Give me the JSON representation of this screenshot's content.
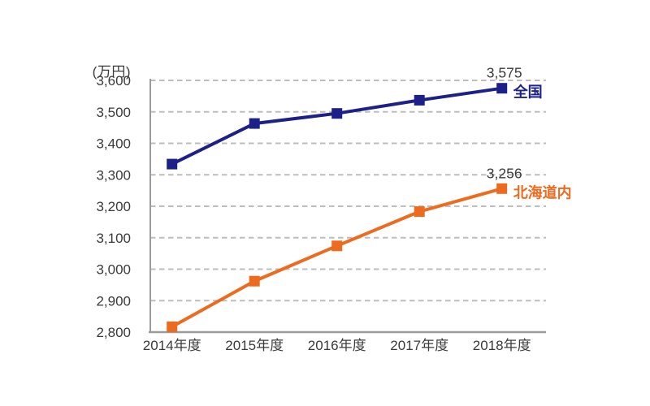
{
  "chart_data": {
    "type": "line",
    "title": "",
    "unit_label": "(万円)",
    "xlabel": "",
    "ylabel": "万円",
    "categories": [
      "2014年度",
      "2015年度",
      "2016年度",
      "2017年度",
      "2018年度"
    ],
    "series": [
      {
        "name": "全国",
        "color": "#1d2088",
        "values": [
          3334,
          3463,
          3495,
          3537,
          3575
        ],
        "end_label": "3,575"
      },
      {
        "name": "北海道内",
        "color": "#ec6b1e",
        "values": [
          2817,
          2962,
          3074,
          3183,
          3256
        ],
        "end_label": "3,256"
      }
    ],
    "ylim": [
      2800,
      3600
    ],
    "yticks": [
      {
        "value": 3600,
        "label": "3,600"
      },
      {
        "value": 3500,
        "label": "3,500"
      },
      {
        "value": 3400,
        "label": "3,400"
      },
      {
        "value": 3300,
        "label": "3,300"
      },
      {
        "value": 3200,
        "label": "3,200"
      },
      {
        "value": 3100,
        "label": "3,100"
      },
      {
        "value": 3000,
        "label": "3,000"
      },
      {
        "value": 2900,
        "label": "2,900"
      },
      {
        "value": 2800,
        "label": "2,800"
      }
    ],
    "grid": "dashed-horizontal",
    "legend_position": "end-of-line",
    "colors": {
      "axis": "#9b9b9b",
      "grid": "#bdbdbd",
      "text": "#3a3a3a"
    }
  }
}
